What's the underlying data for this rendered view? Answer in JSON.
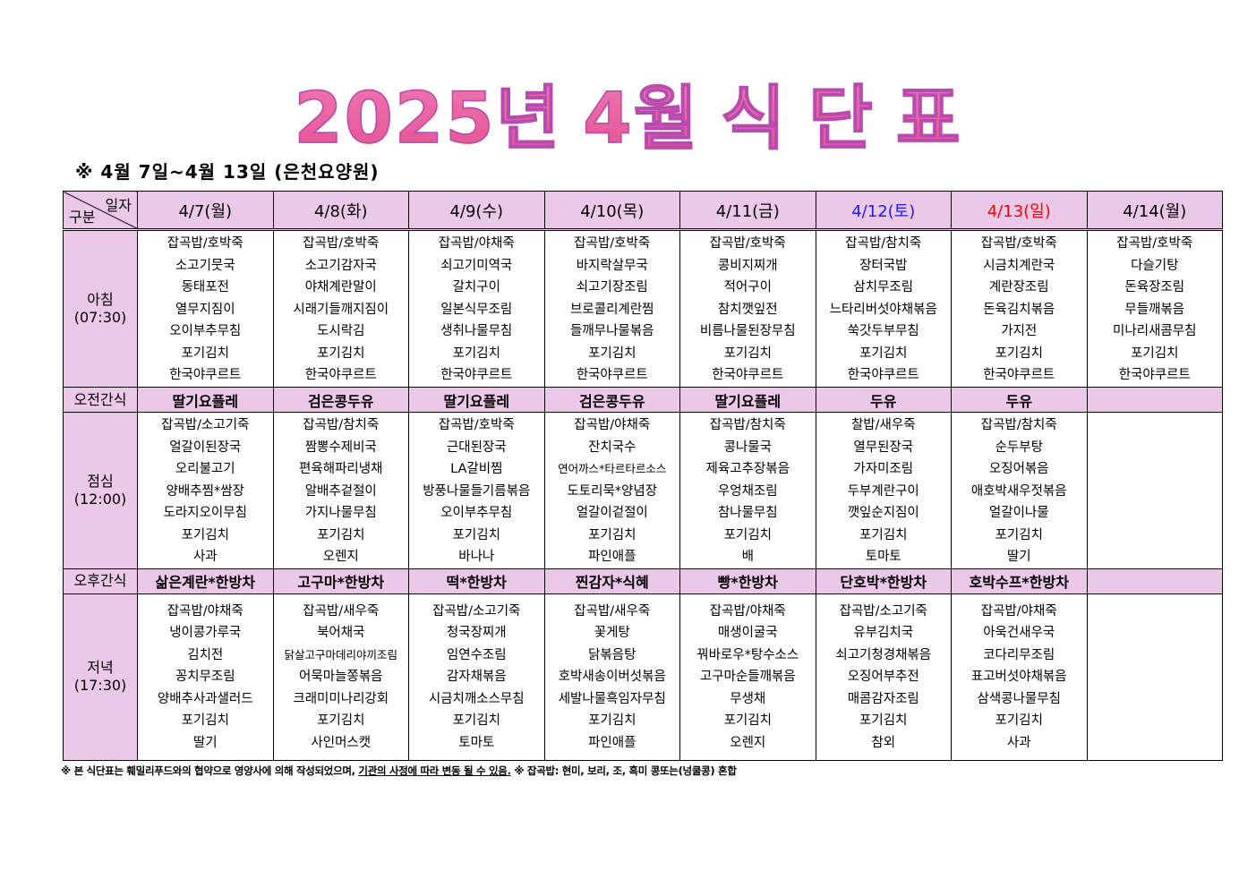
{
  "title": {
    "part1": "2025년",
    "part2": "4월",
    "part3": "식",
    "part4": "단",
    "part5": "표"
  },
  "subtitle": "※  4월  7일~4월  13일  (은천요양원)",
  "corner": {
    "top": "일자",
    "bottom": "구분"
  },
  "days": [
    {
      "label": "4/7(월)",
      "type": "weekday"
    },
    {
      "label": "4/8(화)",
      "type": "weekday"
    },
    {
      "label": "4/9(수)",
      "type": "weekday"
    },
    {
      "label": "4/10(목)",
      "type": "weekday"
    },
    {
      "label": "4/11(금)",
      "type": "weekday"
    },
    {
      "label": "4/12(토)",
      "type": "sat"
    },
    {
      "label": "4/13(일)",
      "type": "sun"
    },
    {
      "label": "4/14(월)",
      "type": "weekday"
    }
  ],
  "colors": {
    "header_bg": "#ebc8e8",
    "saturday": "#1a1aff",
    "sunday": "#ff0000",
    "title": "#e8609f"
  },
  "rows": [
    {
      "kind": "meal",
      "name": "breakfast",
      "label": "아침",
      "time": "(07:30)",
      "cells": [
        [
          "잡곡밥/호박죽",
          "소고기뭇국",
          "동태포전",
          "열무지짐이",
          "오이부추무침",
          "포기김치",
          "한국야쿠르트"
        ],
        [
          "잡곡밥/호박죽",
          "소고기감자국",
          "야채계란말이",
          "시래기들깨지짐이",
          "도시락김",
          "포기김치",
          "한국야쿠르트"
        ],
        [
          "잡곡밥/야채죽",
          "쇠고기미역국",
          "갈치구이",
          "일본식무조림",
          "생취나물무침",
          "포기김치",
          "한국야쿠르트"
        ],
        [
          "잡곡밥/호박죽",
          "바지락살무국",
          "쇠고기장조림",
          "브로콜리계란찜",
          "들깨무나물볶음",
          "포기김치",
          "한국야쿠르트"
        ],
        [
          "잡곡밥/호박죽",
          "콩비지찌개",
          "적어구이",
          "참치깻잎전",
          "비름나물된장무침",
          "포기김치",
          "한국야쿠르트"
        ],
        [
          "잡곡밥/참치죽",
          "장터국밥",
          "삼치무조림",
          "느타리버섯야채볶음",
          "쑥갓두부무침",
          "포기김치",
          "한국야쿠르트"
        ],
        [
          "잡곡밥/호박죽",
          "시금치계란국",
          "계란장조림",
          "돈육김치볶음",
          "가지전",
          "포기김치",
          "한국야쿠르트"
        ],
        [
          "잡곡밥/호박죽",
          "다슬기탕",
          "돈육장조림",
          "무들깨볶음",
          "미나리새콤무침",
          "포기김치",
          "한국야쿠르트"
        ]
      ]
    },
    {
      "kind": "snack",
      "name": "morning-snack",
      "label": "오전간식",
      "cells": [
        "딸기요플레",
        "검은콩두유",
        "딸기요플레",
        "검은콩두유",
        "딸기요플레",
        "두유",
        "두유",
        ""
      ]
    },
    {
      "kind": "meal",
      "name": "lunch",
      "label": "점심",
      "time": "(12:00)",
      "cells": [
        [
          "잡곡밥/소고기죽",
          "얼갈이된장국",
          "오리불고기",
          "양배추찜*쌈장",
          "도라지오이무침",
          "포기김치",
          "사과"
        ],
        [
          "잡곡밥/참치죽",
          "짬뽕수제비국",
          "편육해파리냉채",
          "알배추겉절이",
          "가지나물무침",
          "포기김치",
          "오렌지"
        ],
        [
          "잡곡밥/호박죽",
          "근대된장국",
          "LA갈비찜",
          "방풍나물들기름볶음",
          "오이부추무침",
          "포기김치",
          "바나나"
        ],
        [
          "잡곡밥/야채죽",
          "잔치국수",
          "연어까스*타르타르소스",
          "도토리묵*양념장",
          "얼갈이겉절이",
          "포기김치",
          "파인애플"
        ],
        [
          "잡곡밥/참치죽",
          "콩나물국",
          "제육고추장볶음",
          "우엉채조림",
          "참나물무침",
          "포기김치",
          "배"
        ],
        [
          "찰밥/새우죽",
          "열무된장국",
          "가자미조림",
          "두부계란구이",
          "깻잎순지짐이",
          "포기김치",
          "토마토"
        ],
        [
          "잡곡밥/참치죽",
          "순두부탕",
          "오징어볶음",
          "애호박새우젓볶음",
          "얼갈이나물",
          "포기김치",
          "딸기"
        ],
        []
      ]
    },
    {
      "kind": "snack",
      "name": "afternoon-snack",
      "label": "오후간식",
      "cells": [
        "삶은계란*한방차",
        "고구마*한방차",
        "떡*한방차",
        "찐감자*식혜",
        "빵*한방차",
        "단호박*한방차",
        "호박수프*한방차",
        ""
      ]
    },
    {
      "kind": "meal",
      "name": "dinner",
      "label": "저녁",
      "time": "(17:30)",
      "cells": [
        [
          "잡곡밥/야채죽",
          "냉이콩가루국",
          "김치전",
          "꽁치무조림",
          "양배추사과샐러드",
          "포기김치",
          "딸기"
        ],
        [
          "잡곡밥/새우죽",
          "북어채국",
          "닭살고구마데리야끼조림",
          "어묵마늘쫑볶음",
          "크래미미나리강회",
          "포기김치",
          "사인머스캣"
        ],
        [
          "잡곡밥/소고기죽",
          "청국장찌개",
          "임연수조림",
          "감자채볶음",
          "시금치깨소스무침",
          "포기김치",
          "토마토"
        ],
        [
          "잡곡밥/새우죽",
          "꽃게탕",
          "닭볶음탕",
          "호박새송이버섯볶음",
          "세발나물흑임자무침",
          "포기김치",
          "파인애플"
        ],
        [
          "잡곡밥/야채죽",
          "매생이굴국",
          "꿔바로우*탕수소스",
          "고구마순들깨볶음",
          "무생채",
          "포기김치",
          "오렌지"
        ],
        [
          "잡곡밥/소고기죽",
          "유부김치국",
          "쇠고기청경채볶음",
          "오징어부추전",
          "매콤감자조림",
          "포기김치",
          "참외"
        ],
        [
          "잡곡밥/야채죽",
          "아욱건새우국",
          "코다리무조림",
          "표고버섯야채볶음",
          "삼색콩나물무침",
          "포기김치",
          "사과"
        ],
        []
      ]
    }
  ],
  "footer": {
    "part1": "※ 본 식단표는 훼밀리푸드와의 협약으로 영양사에 의해 작성되었으며, ",
    "underlined": "기관의 사정에 따라 변동 될 수 있음.",
    "part2": " ※ 잡곡밥: 현미, 보리, 조, 흑미 콩또는(넝쿨콩) 혼합"
  }
}
